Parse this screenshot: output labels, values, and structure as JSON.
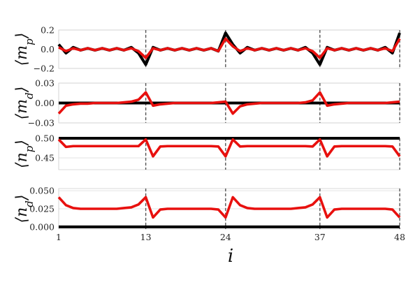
{
  "chart_data": {
    "type": "line",
    "xlabel": "i",
    "x_ticks": [
      1,
      13,
      24,
      37,
      48
    ],
    "vertical_dashed_lines": [
      13,
      24,
      37,
      48
    ],
    "colors": {
      "series_a": "#000000",
      "series_b": "#e8100e"
    },
    "panels": [
      {
        "ylabel": "⟨m",
        "ysub": "p",
        "ylim": [
          -0.2,
          0.2
        ],
        "yticks": [
          0.2,
          0.0,
          -0.2
        ],
        "ytick_labels": [
          "0.2",
          "0.0",
          "−0.2"
        ],
        "series": [
          {
            "color": "black",
            "values": [
              0.05,
              -0.04,
              0.02,
              -0.01,
              0.01,
              -0.01,
              0.01,
              -0.01,
              0.01,
              -0.01,
              0.02,
              -0.04,
              -0.16,
              0.02,
              -0.01,
              0.01,
              -0.01,
              0.01,
              -0.01,
              0.01,
              -0.01,
              0.01,
              -0.02,
              0.17,
              0.05,
              -0.04,
              0.02,
              -0.01,
              0.01,
              -0.01,
              0.01,
              -0.01,
              0.01,
              -0.01,
              0.02,
              -0.04,
              -0.16,
              0.02,
              -0.01,
              0.01,
              -0.01,
              0.01,
              -0.01,
              0.01,
              -0.01,
              0.02,
              -0.04,
              0.17
            ]
          },
          {
            "color": "red",
            "values": [
              0.02,
              -0.02,
              0.01,
              -0.01,
              0.01,
              -0.01,
              0.01,
              -0.01,
              0.01,
              -0.01,
              0.01,
              -0.02,
              -0.09,
              0.01,
              -0.01,
              0.01,
              -0.01,
              0.01,
              -0.01,
              0.01,
              -0.01,
              0.01,
              -0.02,
              0.11,
              0.03,
              -0.02,
              0.01,
              -0.01,
              0.01,
              -0.01,
              0.01,
              -0.01,
              0.01,
              -0.01,
              0.01,
              -0.02,
              -0.09,
              0.01,
              -0.01,
              0.01,
              -0.01,
              0.01,
              -0.01,
              0.01,
              -0.01,
              0.01,
              -0.02,
              0.11
            ]
          }
        ]
      },
      {
        "ylabel": "⟨m",
        "ysub": "d",
        "ylim": [
          -0.03,
          0.03
        ],
        "yticks": [
          0.03,
          0.0,
          -0.03
        ],
        "ytick_labels": [
          "0.03",
          "0.00",
          "−0.03"
        ],
        "series": [
          {
            "color": "black",
            "values": [
              0.0,
              0.0,
              0.0,
              0.0,
              0.0,
              0.0,
              0.0,
              0.0,
              0.0,
              0.0,
              0.0,
              0.0,
              0.0,
              0.0,
              0.0,
              0.0,
              0.0,
              0.0,
              0.0,
              0.0,
              0.0,
              0.0,
              0.0,
              0.0,
              0.0,
              0.0,
              0.0,
              0.0,
              0.0,
              0.0,
              0.0,
              0.0,
              0.0,
              0.0,
              0.0,
              0.0,
              0.0,
              0.0,
              0.0,
              0.0,
              0.0,
              0.0,
              0.0,
              0.0,
              0.0,
              0.0,
              0.0,
              0.0
            ]
          },
          {
            "color": "red",
            "values": [
              -0.016,
              -0.004,
              -0.002,
              -0.001,
              -0.001,
              0.0,
              0.0,
              0.0,
              0.0,
              0.001,
              0.002,
              0.005,
              0.016,
              -0.004,
              -0.002,
              -0.001,
              0.0,
              0.0,
              0.0,
              0.0,
              0.0,
              0.0,
              0.001,
              0.002,
              -0.016,
              -0.005,
              -0.002,
              -0.001,
              0.0,
              0.0,
              0.0,
              0.0,
              0.0,
              0.0,
              0.001,
              0.004,
              0.016,
              -0.004,
              -0.002,
              -0.001,
              0.0,
              0.0,
              0.0,
              0.0,
              0.0,
              0.0,
              0.001,
              0.002
            ]
          }
        ]
      },
      {
        "ylabel": "⟨n",
        "ysub": "p",
        "ylim": [
          0.42,
          0.5
        ],
        "yticks": [
          0.5,
          0.45
        ],
        "ytick_labels": [
          "0.50",
          "0.45"
        ],
        "series": [
          {
            "color": "black",
            "values": [
              0.5,
              0.5,
              0.5,
              0.5,
              0.5,
              0.5,
              0.5,
              0.5,
              0.5,
              0.5,
              0.5,
              0.5,
              0.5,
              0.5,
              0.5,
              0.5,
              0.5,
              0.5,
              0.5,
              0.5,
              0.5,
              0.5,
              0.5,
              0.5,
              0.5,
              0.5,
              0.5,
              0.5,
              0.5,
              0.5,
              0.5,
              0.5,
              0.5,
              0.5,
              0.5,
              0.5,
              0.5,
              0.5,
              0.5,
              0.5,
              0.5,
              0.5,
              0.5,
              0.5,
              0.5,
              0.5,
              0.5,
              0.5
            ]
          },
          {
            "color": "red",
            "values": [
              0.497,
              0.478,
              0.48,
              0.48,
              0.48,
              0.48,
              0.48,
              0.48,
              0.48,
              0.48,
              0.48,
              0.48,
              0.497,
              0.454,
              0.479,
              0.48,
              0.48,
              0.48,
              0.48,
              0.48,
              0.48,
              0.48,
              0.479,
              0.454,
              0.497,
              0.479,
              0.48,
              0.48,
              0.48,
              0.48,
              0.48,
              0.48,
              0.48,
              0.48,
              0.48,
              0.479,
              0.497,
              0.454,
              0.479,
              0.48,
              0.48,
              0.48,
              0.48,
              0.48,
              0.48,
              0.48,
              0.479,
              0.454
            ]
          }
        ]
      },
      {
        "ylabel": "⟨n",
        "ysub": "d",
        "ylim": [
          -0.003,
          0.053
        ],
        "yticks": [
          0.05,
          0.025,
          0.0
        ],
        "ytick_labels": [
          "0.050",
          "0.025",
          "0.000"
        ],
        "series": [
          {
            "color": "black",
            "values": [
              0.0,
              0.0,
              0.0,
              0.0,
              0.0,
              0.0,
              0.0,
              0.0,
              0.0,
              0.0,
              0.0,
              0.0,
              0.0,
              0.0,
              0.0,
              0.0,
              0.0,
              0.0,
              0.0,
              0.0,
              0.0,
              0.0,
              0.0,
              0.0,
              0.0,
              0.0,
              0.0,
              0.0,
              0.0,
              0.0,
              0.0,
              0.0,
              0.0,
              0.0,
              0.0,
              0.0,
              0.0,
              0.0,
              0.0,
              0.0,
              0.0,
              0.0,
              0.0,
              0.0,
              0.0,
              0.0,
              0.0,
              0.0
            ]
          },
          {
            "color": "red",
            "values": [
              0.041,
              0.03,
              0.026,
              0.025,
              0.025,
              0.025,
              0.025,
              0.025,
              0.025,
              0.026,
              0.027,
              0.031,
              0.041,
              0.013,
              0.024,
              0.025,
              0.025,
              0.025,
              0.025,
              0.025,
              0.025,
              0.025,
              0.024,
              0.013,
              0.041,
              0.03,
              0.026,
              0.025,
              0.025,
              0.025,
              0.025,
              0.025,
              0.025,
              0.026,
              0.027,
              0.031,
              0.041,
              0.013,
              0.024,
              0.025,
              0.025,
              0.025,
              0.025,
              0.025,
              0.025,
              0.025,
              0.024,
              0.013
            ]
          }
        ]
      }
    ]
  }
}
